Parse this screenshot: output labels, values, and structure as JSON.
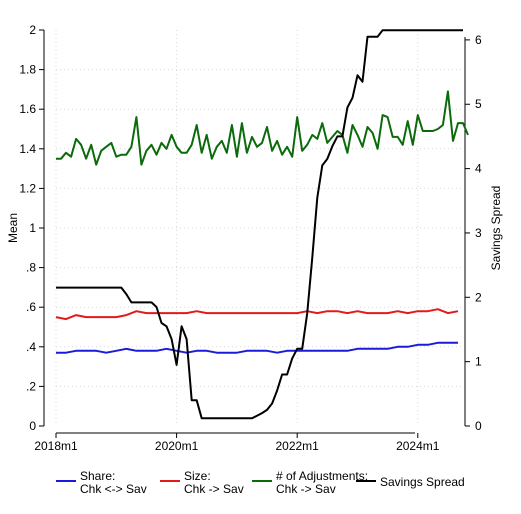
{
  "chart_data": {
    "type": "line",
    "xlabel": "",
    "ylabel_left": "Mean",
    "ylabel_right": "Savings Spread",
    "ylim_left": [
      0,
      2
    ],
    "ylim_right": [
      0,
      6.1538
    ],
    "xlim": [
      "2018-01",
      "2024-10"
    ],
    "x_ticks": [
      {
        "label": "2018m1",
        "value": "2018-01"
      },
      {
        "label": "2020m1",
        "value": "2020-01"
      },
      {
        "label": "2022m1",
        "value": "2022-01"
      },
      {
        "label": "2024m1",
        "value": "2024-01"
      }
    ],
    "y_ticks_left": [
      "0",
      ".2",
      ".4",
      ".6",
      ".8",
      "1",
      "1.2",
      "1.4",
      "1.6",
      "1.8",
      "2"
    ],
    "y_ticks_right": [
      "0",
      "1",
      "2",
      "3",
      "4",
      "5",
      "6"
    ],
    "grid": true,
    "legend_position": "bottom",
    "series": [
      {
        "name": "Share:\nChk <-> Sav",
        "color": "#1a1adb",
        "axis": "left",
        "points": [
          [
            "2018-01",
            0.37
          ],
          [
            "2018-03",
            0.37
          ],
          [
            "2018-05",
            0.38
          ],
          [
            "2018-07",
            0.38
          ],
          [
            "2018-09",
            0.38
          ],
          [
            "2018-11",
            0.37
          ],
          [
            "2019-01",
            0.38
          ],
          [
            "2019-03",
            0.39
          ],
          [
            "2019-05",
            0.38
          ],
          [
            "2019-07",
            0.38
          ],
          [
            "2019-09",
            0.38
          ],
          [
            "2019-11",
            0.39
          ],
          [
            "2020-01",
            0.38
          ],
          [
            "2020-03",
            0.37
          ],
          [
            "2020-05",
            0.38
          ],
          [
            "2020-07",
            0.38
          ],
          [
            "2020-09",
            0.37
          ],
          [
            "2020-11",
            0.37
          ],
          [
            "2021-01",
            0.37
          ],
          [
            "2021-03",
            0.38
          ],
          [
            "2021-05",
            0.38
          ],
          [
            "2021-07",
            0.38
          ],
          [
            "2021-09",
            0.37
          ],
          [
            "2021-11",
            0.38
          ],
          [
            "2022-01",
            0.38
          ],
          [
            "2022-03",
            0.38
          ],
          [
            "2022-05",
            0.38
          ],
          [
            "2022-07",
            0.38
          ],
          [
            "2022-09",
            0.38
          ],
          [
            "2022-11",
            0.38
          ],
          [
            "2023-01",
            0.39
          ],
          [
            "2023-03",
            0.39
          ],
          [
            "2023-05",
            0.39
          ],
          [
            "2023-07",
            0.39
          ],
          [
            "2023-09",
            0.4
          ],
          [
            "2023-11",
            0.4
          ],
          [
            "2024-01",
            0.41
          ],
          [
            "2024-03",
            0.41
          ],
          [
            "2024-05",
            0.42
          ],
          [
            "2024-07",
            0.42
          ],
          [
            "2024-09",
            0.42
          ]
        ]
      },
      {
        "name": "Size:\nChk -> Sav",
        "color": "#e31a1c",
        "axis": "left",
        "points": [
          [
            "2018-01",
            0.55
          ],
          [
            "2018-03",
            0.54
          ],
          [
            "2018-05",
            0.56
          ],
          [
            "2018-07",
            0.55
          ],
          [
            "2018-09",
            0.55
          ],
          [
            "2018-11",
            0.55
          ],
          [
            "2019-01",
            0.55
          ],
          [
            "2019-03",
            0.56
          ],
          [
            "2019-05",
            0.58
          ],
          [
            "2019-07",
            0.57
          ],
          [
            "2019-09",
            0.57
          ],
          [
            "2019-11",
            0.57
          ],
          [
            "2020-01",
            0.57
          ],
          [
            "2020-03",
            0.57
          ],
          [
            "2020-05",
            0.58
          ],
          [
            "2020-07",
            0.57
          ],
          [
            "2020-09",
            0.57
          ],
          [
            "2020-11",
            0.57
          ],
          [
            "2021-01",
            0.57
          ],
          [
            "2021-03",
            0.57
          ],
          [
            "2021-05",
            0.57
          ],
          [
            "2021-07",
            0.57
          ],
          [
            "2021-09",
            0.57
          ],
          [
            "2021-11",
            0.57
          ],
          [
            "2022-01",
            0.57
          ],
          [
            "2022-03",
            0.58
          ],
          [
            "2022-05",
            0.57
          ],
          [
            "2022-07",
            0.58
          ],
          [
            "2022-09",
            0.58
          ],
          [
            "2022-11",
            0.57
          ],
          [
            "2023-01",
            0.58
          ],
          [
            "2023-03",
            0.57
          ],
          [
            "2023-05",
            0.57
          ],
          [
            "2023-07",
            0.57
          ],
          [
            "2023-09",
            0.58
          ],
          [
            "2023-11",
            0.57
          ],
          [
            "2024-01",
            0.58
          ],
          [
            "2024-03",
            0.58
          ],
          [
            "2024-05",
            0.59
          ],
          [
            "2024-07",
            0.57
          ],
          [
            "2024-09",
            0.58
          ]
        ]
      },
      {
        "name": "# of Adjustments:\nChk -> Sav",
        "color": "#0b6b0b",
        "axis": "left",
        "points": [
          [
            "2018-01",
            1.35
          ],
          [
            "2018-02",
            1.35
          ],
          [
            "2018-03",
            1.38
          ],
          [
            "2018-04",
            1.36
          ],
          [
            "2018-05",
            1.45
          ],
          [
            "2018-06",
            1.42
          ],
          [
            "2018-07",
            1.35
          ],
          [
            "2018-08",
            1.42
          ],
          [
            "2018-09",
            1.32
          ],
          [
            "2018-10",
            1.39
          ],
          [
            "2018-11",
            1.41
          ],
          [
            "2018-12",
            1.43
          ],
          [
            "2019-01",
            1.36
          ],
          [
            "2019-02",
            1.37
          ],
          [
            "2019-03",
            1.37
          ],
          [
            "2019-04",
            1.41
          ],
          [
            "2019-05",
            1.56
          ],
          [
            "2019-06",
            1.32
          ],
          [
            "2019-07",
            1.39
          ],
          [
            "2019-08",
            1.42
          ],
          [
            "2019-09",
            1.37
          ],
          [
            "2019-10",
            1.43
          ],
          [
            "2019-11",
            1.4
          ],
          [
            "2019-12",
            1.47
          ],
          [
            "2020-01",
            1.41
          ],
          [
            "2020-02",
            1.38
          ],
          [
            "2020-03",
            1.38
          ],
          [
            "2020-04",
            1.42
          ],
          [
            "2020-05",
            1.52
          ],
          [
            "2020-06",
            1.38
          ],
          [
            "2020-07",
            1.47
          ],
          [
            "2020-08",
            1.35
          ],
          [
            "2020-09",
            1.41
          ],
          [
            "2020-10",
            1.44
          ],
          [
            "2020-11",
            1.38
          ],
          [
            "2020-12",
            1.52
          ],
          [
            "2021-01",
            1.36
          ],
          [
            "2021-02",
            1.53
          ],
          [
            "2021-03",
            1.38
          ],
          [
            "2021-04",
            1.46
          ],
          [
            "2021-05",
            1.41
          ],
          [
            "2021-06",
            1.43
          ],
          [
            "2021-07",
            1.51
          ],
          [
            "2021-08",
            1.39
          ],
          [
            "2021-09",
            1.44
          ],
          [
            "2021-10",
            1.37
          ],
          [
            "2021-11",
            1.41
          ],
          [
            "2021-12",
            1.36
          ],
          [
            "2022-01",
            1.56
          ],
          [
            "2022-02",
            1.39
          ],
          [
            "2022-03",
            1.42
          ],
          [
            "2022-04",
            1.47
          ],
          [
            "2022-05",
            1.45
          ],
          [
            "2022-06",
            1.53
          ],
          [
            "2022-07",
            1.43
          ],
          [
            "2022-08",
            1.46
          ],
          [
            "2022-09",
            1.49
          ],
          [
            "2022-10",
            1.47
          ],
          [
            "2022-11",
            1.38
          ],
          [
            "2022-12",
            1.52
          ],
          [
            "2023-01",
            1.47
          ],
          [
            "2023-02",
            1.41
          ],
          [
            "2023-03",
            1.51
          ],
          [
            "2023-04",
            1.48
          ],
          [
            "2023-05",
            1.4
          ],
          [
            "2023-06",
            1.57
          ],
          [
            "2023-07",
            1.56
          ],
          [
            "2023-08",
            1.46
          ],
          [
            "2023-09",
            1.46
          ],
          [
            "2023-10",
            1.42
          ],
          [
            "2023-11",
            1.54
          ],
          [
            "2023-12",
            1.42
          ],
          [
            "2024-01",
            1.57
          ],
          [
            "2024-02",
            1.49
          ],
          [
            "2024-03",
            1.49
          ],
          [
            "2024-04",
            1.49
          ],
          [
            "2024-05",
            1.5
          ],
          [
            "2024-06",
            1.52
          ],
          [
            "2024-07",
            1.69
          ],
          [
            "2024-08",
            1.44
          ],
          [
            "2024-09",
            1.53
          ],
          [
            "2024-10",
            1.53
          ],
          [
            "2024-11",
            1.47
          ]
        ]
      },
      {
        "name": "Savings Spread",
        "color": "#000000",
        "axis": "right",
        "points": [
          [
            "2018-01",
            2.15
          ],
          [
            "2019-02",
            2.15
          ],
          [
            "2019-03",
            2.05
          ],
          [
            "2019-04",
            1.92
          ],
          [
            "2019-08",
            1.92
          ],
          [
            "2019-09",
            1.85
          ],
          [
            "2019-10",
            1.6
          ],
          [
            "2019-11",
            1.55
          ],
          [
            "2019-12",
            1.35
          ],
          [
            "2020-01",
            0.95
          ],
          [
            "2020-02",
            1.55
          ],
          [
            "2020-03",
            1.35
          ],
          [
            "2020-04",
            0.4
          ],
          [
            "2020-05",
            0.4
          ],
          [
            "2020-06",
            0.12
          ],
          [
            "2021-04",
            0.12
          ],
          [
            "2021-05",
            0.16
          ],
          [
            "2021-06",
            0.2
          ],
          [
            "2021-07",
            0.25
          ],
          [
            "2021-08",
            0.35
          ],
          [
            "2021-09",
            0.55
          ],
          [
            "2021-10",
            0.8
          ],
          [
            "2021-11",
            0.8
          ],
          [
            "2021-12",
            1.05
          ],
          [
            "2022-01",
            1.2
          ],
          [
            "2022-02",
            1.2
          ],
          [
            "2022-03",
            1.75
          ],
          [
            "2022-04",
            2.62
          ],
          [
            "2022-05",
            3.55
          ],
          [
            "2022-06",
            4.05
          ],
          [
            "2022-07",
            4.15
          ],
          [
            "2022-08",
            4.35
          ],
          [
            "2022-09",
            4.5
          ],
          [
            "2022-10",
            4.5
          ],
          [
            "2022-11",
            4.95
          ],
          [
            "2022-12",
            5.1
          ],
          [
            "2023-01",
            5.45
          ],
          [
            "2023-02",
            5.35
          ],
          [
            "2023-03",
            6.05
          ],
          [
            "2023-05",
            6.05
          ],
          [
            "2023-06",
            6.15
          ],
          [
            "2024-10",
            6.15
          ]
        ]
      }
    ]
  }
}
